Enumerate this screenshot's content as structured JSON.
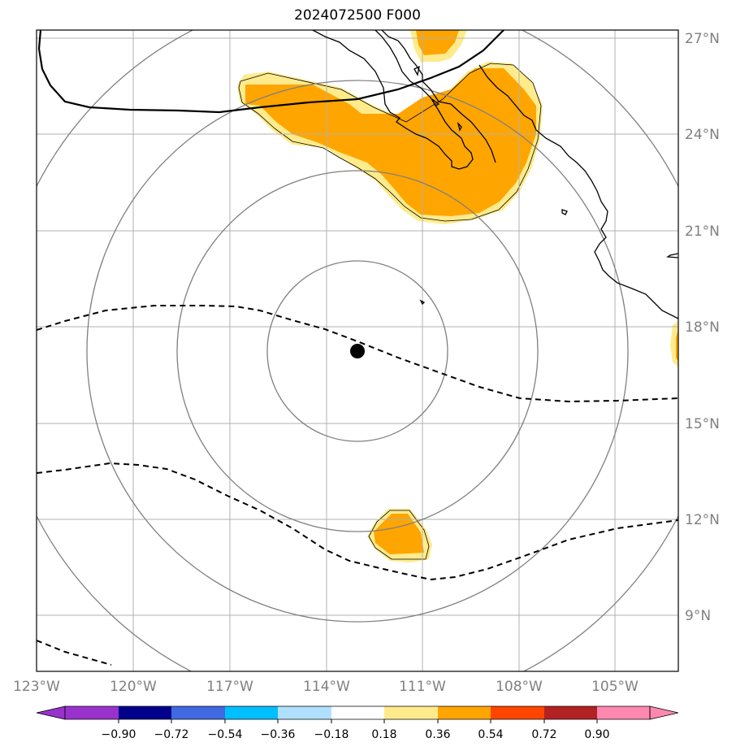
{
  "title": "2024072500 F000",
  "map": {
    "lon_range": [
      -123,
      -103.7
    ],
    "lat_range": [
      7.3,
      27.3
    ],
    "storm_center": {
      "lon": -113.0,
      "lat": 17.2
    },
    "range_ring_radii_deg": [
      3,
      6,
      9,
      12
    ],
    "colors": {
      "grid": "#b0b0b0",
      "rings": "#808080",
      "coast": "#000000",
      "fill_inner": "#ffa500",
      "fill_outer": "#ffeb8c"
    }
  },
  "lat_labels": [
    "27°N",
    "24°N",
    "21°N",
    "18°N",
    "15°N",
    "12°N",
    "9°N"
  ],
  "lon_labels": [
    "123°W",
    "120°W",
    "117°W",
    "114°W",
    "111°W",
    "108°W",
    "105°W"
  ],
  "colorbar": {
    "ticks": [
      "−0.90",
      "−0.72",
      "−0.54",
      "−0.36",
      "−0.18",
      "0.18",
      "0.36",
      "0.54",
      "0.72",
      "0.90"
    ],
    "colors": [
      "#9932cc",
      "#00008b",
      "#4169e1",
      "#00bfff",
      "#b0e0ff",
      "#ffffff",
      "#ffeb8c",
      "#ffa500",
      "#ff4500",
      "#b22222",
      "#ff88b0"
    ]
  }
}
